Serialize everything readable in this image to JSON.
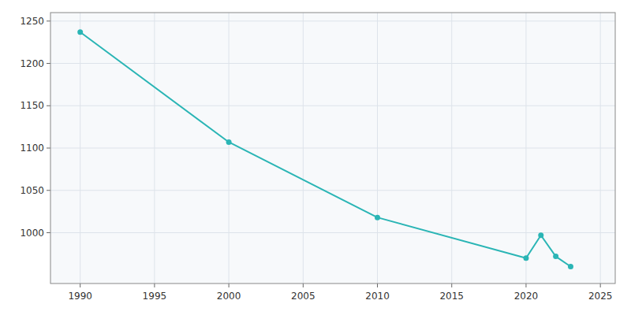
{
  "chart_data": {
    "type": "line",
    "x": [
      1990,
      2000,
      2010,
      2020,
      2021,
      2022,
      2023
    ],
    "values": [
      1237,
      1107,
      1018,
      970,
      997,
      972,
      960
    ],
    "color": "#2ab5b5",
    "marker": "circle",
    "xlim": [
      1988,
      2026
    ],
    "ylim": [
      940,
      1260
    ],
    "xticks": [
      1990,
      1995,
      2000,
      2005,
      2010,
      2015,
      2020,
      2025
    ],
    "yticks": [
      1000,
      1050,
      1100,
      1150,
      1200,
      1250
    ],
    "grid": true
  }
}
